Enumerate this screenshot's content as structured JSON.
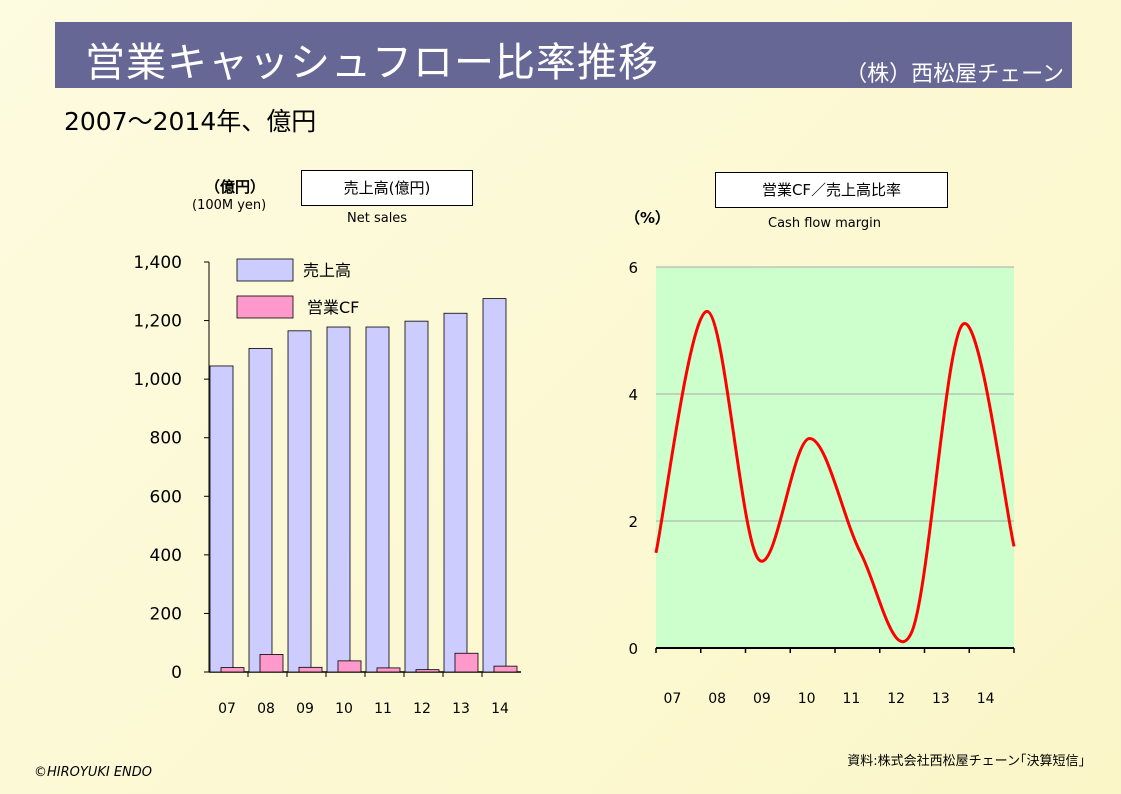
{
  "header": {
    "title": "営業キャッシュフロー比率推移",
    "company": "（株）西松屋チェーン"
  },
  "subtitle": "2007～2014年、億円",
  "left_panel": {
    "unit_ja": "（億円）",
    "unit_en": "(100M yen)",
    "box_label": "売上高(億円)",
    "caption": "Net sales"
  },
  "right_panel": {
    "unit": "（%）",
    "box_label": "営業CF／売上高比率",
    "caption": "Cash flow margin"
  },
  "footer": {
    "copyright": "©HIROYUKI  ENDO",
    "source": "資料:株式会社西松屋チェーン｢決算短信｣"
  },
  "colors": {
    "banner": "#676795",
    "sales_bar": "#ccccff",
    "cf_bar": "#ff99cc",
    "ratio_line": "#ff0000",
    "plot_area": "#ccffcc"
  },
  "chart_data": [
    {
      "type": "bar",
      "categories": [
        "07",
        "08",
        "09",
        "10",
        "11",
        "12",
        "13",
        "14"
      ],
      "series": [
        {
          "name": "売上高",
          "values": [
            1045,
            1105,
            1165,
            1178,
            1178,
            1198,
            1225,
            1275
          ]
        },
        {
          "name": "営業CF",
          "values": [
            15,
            60,
            16,
            38,
            14,
            8,
            64,
            20
          ]
        }
      ],
      "ylim": [
        0,
        1400
      ],
      "yticks": [
        "0",
        "200",
        "400",
        "600",
        "800",
        "1,000",
        "1,200",
        "1,400"
      ],
      "ytick_values": [
        0,
        200,
        400,
        600,
        800,
        1000,
        1200,
        1400
      ],
      "legend": "top-left",
      "grid": false
    },
    {
      "type": "line",
      "categories": [
        "07",
        "08",
        "09",
        "10",
        "11",
        "12",
        "13",
        "14"
      ],
      "series": [
        {
          "values": [
            1.5,
            5.3,
            1.4,
            3.3,
            1.5,
            0.25,
            5.1,
            1.6
          ]
        }
      ],
      "ylim": [
        0,
        6
      ],
      "yticks": [
        "0",
        "2",
        "4",
        "6"
      ],
      "ytick_values": [
        0,
        2,
        4,
        6
      ],
      "grid": true
    }
  ]
}
